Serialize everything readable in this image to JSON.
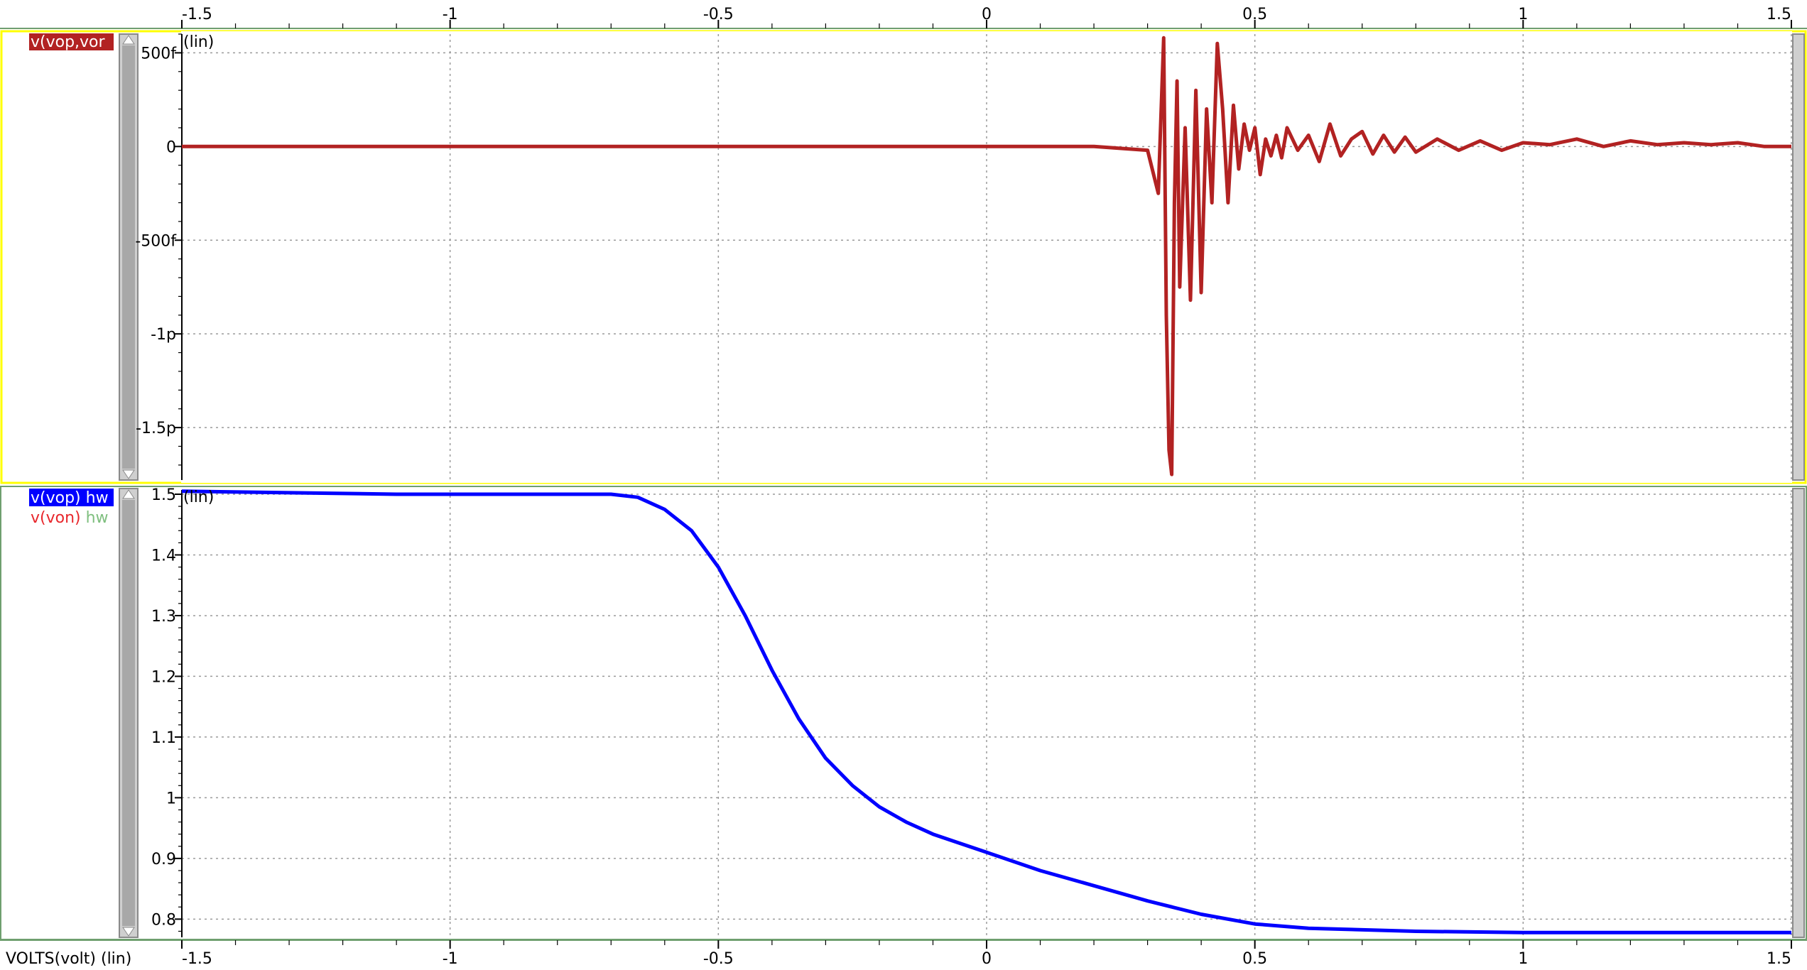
{
  "x_axis": {
    "ticks": [
      "-1.5",
      "-1",
      "-0.5",
      "0",
      "0.5",
      "1",
      "1.5"
    ],
    "tick_values": [
      -1.5,
      -1,
      -0.5,
      0,
      0.5,
      1,
      1.5
    ],
    "label": "VOLTS(volt) (lin)"
  },
  "panels": [
    {
      "scale_label": "(lin)",
      "legend": [
        {
          "name": "v(vop,vor",
          "suffix": ""
        }
      ],
      "y_ticks": [
        "500f",
        "0",
        "-500f",
        "-1p",
        "-1.5p"
      ]
    },
    {
      "scale_label": "(lin)",
      "legend": [
        {
          "name": "v(vop)",
          "suffix": "hw"
        },
        {
          "name": "v(von)",
          "suffix": "hw"
        }
      ],
      "y_ticks": [
        "1.5",
        "1.4",
        "1.3",
        "1.2",
        "1.1",
        "1",
        "0.9",
        "0.8"
      ]
    }
  ],
  "colors": {
    "diff": "#b22222",
    "vop": "#0000ff",
    "von": "#e8262b",
    "hw": "#7fbf7f",
    "legend_bg": "#0000ff",
    "legend_diff_bg": "#b22222",
    "panel_border": "#ffff00",
    "scrollbar": "#b0b0b0",
    "grid": "#9a9a9a"
  },
  "chart_data": [
    {
      "type": "line",
      "xlabel": "VOLTS(volt) (lin)",
      "xlim": [
        -1.5,
        1.5
      ],
      "ylim": [
        -1.78e-12,
        6e-13
      ],
      "grid": true,
      "series": [
        {
          "name": "v(vop,vor",
          "x": [
            -1.5,
            -0.2,
            0.2,
            0.3,
            0.32,
            0.33,
            0.335,
            0.34,
            0.345,
            0.35,
            0.355,
            0.36,
            0.37,
            0.38,
            0.39,
            0.4,
            0.41,
            0.42,
            0.43,
            0.44,
            0.45,
            0.46,
            0.47,
            0.48,
            0.49,
            0.5,
            0.51,
            0.52,
            0.53,
            0.54,
            0.55,
            0.56,
            0.58,
            0.6,
            0.62,
            0.64,
            0.66,
            0.68,
            0.7,
            0.72,
            0.74,
            0.76,
            0.78,
            0.8,
            0.84,
            0.88,
            0.92,
            0.96,
            1.0,
            1.05,
            1.1,
            1.15,
            1.2,
            1.25,
            1.3,
            1.35,
            1.4,
            1.45,
            1.5
          ],
          "y": [
            0,
            0,
            0,
            -2e-14,
            -2.5e-13,
            5.8e-13,
            -9e-13,
            -1.62e-12,
            -1.75e-12,
            -3e-13,
            3.5e-13,
            -7.5e-13,
            1e-13,
            -8.2e-13,
            3e-13,
            -7.8e-13,
            2e-13,
            -3e-13,
            5.5e-13,
            2e-13,
            -3e-13,
            2.2e-13,
            -1.2e-13,
            1.2e-13,
            -2e-14,
            1e-13,
            -1.5e-13,
            4e-14,
            -5e-14,
            6e-14,
            -6e-14,
            1e-13,
            -2e-14,
            6e-14,
            -8e-14,
            1.2e-13,
            -5e-14,
            4e-14,
            8e-14,
            -4e-14,
            6e-14,
            -3e-14,
            5e-14,
            -3e-14,
            4e-14,
            -2e-14,
            3e-14,
            -2e-14,
            2e-14,
            1e-14,
            4e-14,
            0.0,
            3e-14,
            1e-14,
            2e-14,
            1e-14,
            2e-14,
            0.0,
            0.0
          ]
        }
      ]
    },
    {
      "type": "line",
      "xlabel": "VOLTS(volt) (lin)",
      "xlim": [
        -1.5,
        1.5
      ],
      "ylim": [
        0.77,
        1.507
      ],
      "grid": true,
      "series": [
        {
          "name": "v(vop)",
          "x": [
            -1.5,
            -1.1,
            -0.7,
            -0.65,
            -0.6,
            -0.55,
            -0.5,
            -0.45,
            -0.4,
            -0.35,
            -0.3,
            -0.25,
            -0.2,
            -0.15,
            -0.1,
            -0.05,
            0.0,
            0.1,
            0.2,
            0.3,
            0.4,
            0.5,
            0.6,
            0.8,
            1.0,
            1.2,
            1.5
          ],
          "y": [
            1.505,
            1.5,
            1.5,
            1.495,
            1.475,
            1.44,
            1.38,
            1.3,
            1.21,
            1.13,
            1.065,
            1.02,
            0.985,
            0.96,
            0.94,
            0.925,
            0.91,
            0.88,
            0.855,
            0.83,
            0.808,
            0.792,
            0.785,
            0.78,
            0.778,
            0.778,
            0.778
          ]
        },
        {
          "name": "v(von)",
          "x": [
            -1.5,
            -1.1,
            -0.7,
            -0.65,
            -0.6,
            -0.55,
            -0.5,
            -0.45,
            -0.4,
            -0.35,
            -0.3,
            -0.25,
            -0.2,
            -0.15,
            -0.1,
            -0.05,
            0.0,
            0.1,
            0.2,
            0.3,
            0.4,
            0.5,
            0.6,
            0.8,
            1.0,
            1.2,
            1.5
          ],
          "y": [
            1.505,
            1.5,
            1.5,
            1.495,
            1.475,
            1.44,
            1.38,
            1.3,
            1.21,
            1.13,
            1.065,
            1.02,
            0.985,
            0.96,
            0.94,
            0.925,
            0.91,
            0.88,
            0.855,
            0.83,
            0.808,
            0.792,
            0.785,
            0.78,
            0.778,
            0.778,
            0.778
          ]
        }
      ]
    }
  ]
}
